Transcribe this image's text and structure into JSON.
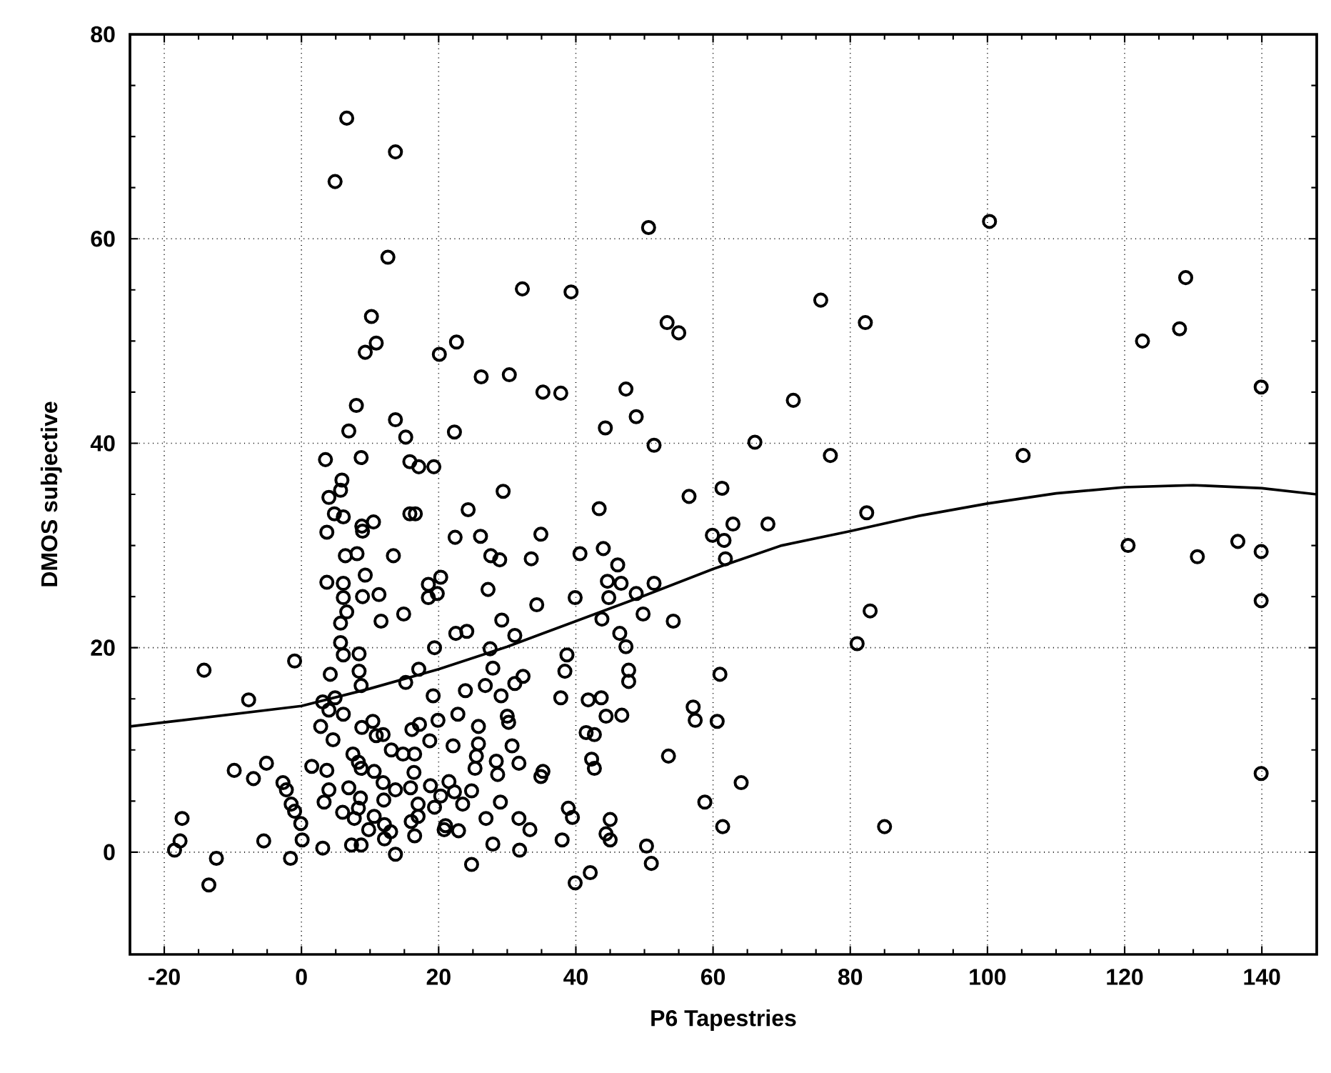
{
  "chart_data": {
    "type": "scatter",
    "xlabel": "P6  Tapestries",
    "ylabel": "DMOS subjective",
    "xlim": [
      -25,
      148
    ],
    "ylim": [
      -10,
      80
    ],
    "xticks": [
      -20,
      0,
      20,
      40,
      60,
      80,
      100,
      120,
      140
    ],
    "yticks": [
      0,
      20,
      40,
      60,
      80
    ],
    "grid": true,
    "series": [
      {
        "marker": "circle",
        "color": "#000000",
        "x": [
          6.6,
          13.7,
          4.9,
          12.6,
          50.6,
          100.3,
          32.2,
          39.3,
          128.9,
          75.7,
          82.2,
          53.3,
          55.0,
          122.6,
          128.0,
          10.2,
          10.9,
          9.3,
          22.6,
          20.1,
          26.2,
          30.3,
          35.2,
          37.8,
          47.3,
          48.8,
          71.7,
          139.9,
          8.0,
          13.7,
          15.2,
          22.3,
          44.3,
          51.4,
          66.1,
          77.1,
          105.2,
          6.9,
          8.7,
          3.5,
          15.8,
          17.1,
          19.3,
          5.9,
          5.7,
          29.4,
          61.3,
          4.0,
          4.8,
          6.1,
          15.8,
          16.6,
          24.3,
          43.4,
          56.5,
          82.4,
          3.7,
          8.8,
          10.5,
          22.4,
          26.1,
          34.9,
          59.9,
          62.9,
          68.0,
          61.6,
          120.5,
          130.6,
          136.5,
          139.9,
          6.4,
          8.1,
          13.4,
          27.6,
          28.9,
          33.5,
          40.6,
          44.0,
          46.1,
          61.8,
          3.7,
          6.1,
          9.3,
          18.5,
          20.3,
          27.2,
          44.6,
          46.6,
          51.4,
          48.8,
          6.1,
          8.9,
          11.3,
          18.5,
          19.8,
          34.3,
          39.9,
          44.8,
          49.8,
          6.6,
          14.9,
          11.6,
          29.2,
          43.8,
          54.2,
          139.9,
          82.9,
          5.7,
          22.5,
          24.1,
          31.1,
          46.4,
          5.7,
          19.4,
          27.5,
          47.3,
          81.0,
          6.1,
          8.4,
          38.7,
          -1.0,
          -14.2,
          4.2,
          8.4,
          17.1,
          27.9,
          32.3,
          38.4,
          47.7,
          61.0,
          8.7,
          15.2,
          31.1,
          47.7,
          23.9,
          26.8,
          19.2,
          29.1,
          -7.7,
          3.1,
          4.9,
          37.8,
          41.8,
          43.7,
          57.1,
          4.0,
          6.1,
          22.8,
          19.9,
          30.0,
          44.4,
          46.7,
          57.4,
          60.6,
          2.8,
          8.8,
          10.4,
          25.8,
          30.2,
          17.2,
          16.1,
          10.9,
          11.9,
          41.5,
          42.7,
          4.6,
          18.7,
          25.8,
          30.7,
          22.1,
          13.1,
          25.5,
          53.5,
          14.8,
          16.5,
          7.5,
          28.4,
          42.3,
          8.3,
          31.7,
          8.7,
          1.5,
          -9.8,
          -5.1,
          -7.0,
          3.7,
          42.7,
          139.9,
          10.6,
          16.4,
          25.3,
          28.6,
          35.2,
          34.9,
          64.1,
          -2.7,
          -2.2,
          4.0,
          6.9,
          11.9,
          13.7,
          15.9,
          18.8,
          21.5,
          22.3,
          24.8,
          20.3,
          8.6,
          3.3,
          -1.5,
          29.0,
          58.8,
          12.0,
          23.5,
          8.3,
          17.0,
          19.4,
          -1.0,
          6.0,
          38.9,
          39.5,
          7.7,
          10.6,
          17.0,
          26.9,
          31.7,
          45.0,
          -17.4,
          -0.1,
          12.1,
          16.0,
          21.0,
          20.8,
          22.9,
          33.3,
          61.4,
          85.0,
          9.8,
          13.0,
          16.5,
          44.4,
          45.0,
          0.1,
          -5.5,
          -17.7,
          7.3,
          8.7,
          12.1,
          27.9,
          38.0,
          50.3,
          -18.5,
          3.1,
          31.8,
          13.7,
          -12.4,
          -1.6,
          51.0,
          24.8,
          42.1,
          39.9,
          -13.5,
          8.9
        ],
        "values": [
          71.8,
          68.5,
          65.6,
          58.2,
          61.1,
          61.7,
          55.1,
          54.8,
          56.2,
          54.0,
          51.8,
          51.8,
          50.8,
          50.0,
          51.2,
          52.4,
          49.8,
          48.9,
          49.9,
          48.7,
          46.5,
          46.7,
          45.0,
          44.9,
          45.3,
          42.6,
          44.2,
          45.5,
          43.7,
          42.3,
          40.6,
          41.1,
          41.5,
          39.8,
          40.1,
          38.8,
          38.8,
          41.2,
          38.6,
          38.4,
          38.2,
          37.7,
          37.7,
          36.4,
          35.4,
          35.3,
          35.6,
          34.7,
          33.1,
          32.8,
          33.1,
          33.1,
          33.5,
          33.6,
          34.8,
          33.2,
          31.3,
          31.9,
          32.3,
          30.8,
          30.9,
          31.1,
          31.0,
          32.1,
          32.1,
          30.5,
          30.0,
          28.9,
          30.4,
          29.4,
          29.0,
          29.2,
          29.0,
          29.0,
          28.6,
          28.7,
          29.2,
          29.7,
          28.1,
          28.7,
          26.4,
          26.3,
          27.1,
          26.2,
          26.9,
          25.7,
          26.5,
          26.3,
          26.3,
          25.3,
          24.9,
          25.0,
          25.2,
          24.9,
          25.3,
          24.2,
          24.9,
          24.9,
          23.3,
          23.5,
          23.3,
          22.6,
          22.7,
          22.8,
          22.6,
          24.6,
          23.6,
          22.4,
          21.4,
          21.6,
          21.2,
          21.4,
          20.5,
          20.0,
          19.9,
          20.1,
          20.4,
          19.3,
          19.4,
          19.3,
          18.7,
          17.8,
          17.4,
          17.7,
          17.9,
          18.0,
          17.2,
          17.7,
          17.8,
          17.4,
          16.3,
          16.6,
          16.5,
          16.7,
          15.8,
          16.3,
          15.3,
          15.3,
          14.9,
          14.7,
          15.1,
          15.1,
          14.9,
          15.1,
          14.2,
          13.9,
          13.5,
          13.5,
          12.9,
          13.3,
          13.3,
          13.4,
          12.9,
          12.8,
          12.3,
          12.2,
          12.8,
          12.3,
          12.7,
          12.5,
          12.0,
          11.4,
          11.5,
          11.7,
          11.5,
          11.0,
          10.9,
          10.6,
          10.4,
          10.4,
          10.0,
          9.4,
          9.4,
          9.6,
          9.6,
          9.6,
          8.9,
          9.1,
          8.8,
          8.7,
          8.2,
          8.4,
          8.0,
          8.7,
          7.2,
          8.0,
          8.2,
          7.7,
          7.9,
          7.8,
          8.2,
          7.6,
          7.9,
          7.4,
          6.8,
          6.8,
          6.1,
          6.1,
          6.3,
          6.8,
          6.1,
          6.3,
          6.5,
          6.9,
          5.9,
          6.0,
          5.5,
          5.3,
          4.9,
          4.7,
          4.9,
          4.9,
          5.1,
          4.7,
          4.3,
          4.7,
          4.4,
          4.0,
          3.9,
          4.3,
          3.4,
          3.3,
          3.5,
          3.5,
          3.3,
          3.3,
          3.2,
          3.3,
          2.8,
          2.7,
          3.0,
          2.6,
          2.2,
          2.1,
          2.2,
          2.5,
          2.5,
          2.2,
          2.0,
          1.6,
          1.8,
          1.2,
          1.2,
          1.1,
          1.1,
          0.7,
          0.7,
          1.3,
          0.8,
          1.2,
          0.6,
          0.2,
          0.4,
          0.2,
          -0.2,
          -0.6,
          -0.6,
          -1.1,
          -1.2,
          -2.0,
          -3.0,
          -3.2,
          31.4
        ]
      },
      {
        "type": "line",
        "color": "#000000",
        "x": [
          -25,
          -20,
          0,
          10,
          20,
          30,
          40,
          50,
          60,
          70,
          80,
          90,
          100,
          110,
          120,
          130,
          140,
          148
        ],
        "values": [
          12.3,
          12.7,
          14.3,
          16.0,
          17.9,
          20.1,
          22.6,
          25.1,
          27.7,
          30.0,
          31.4,
          32.9,
          34.1,
          35.1,
          35.7,
          35.9,
          35.6,
          35.0
        ]
      }
    ]
  }
}
